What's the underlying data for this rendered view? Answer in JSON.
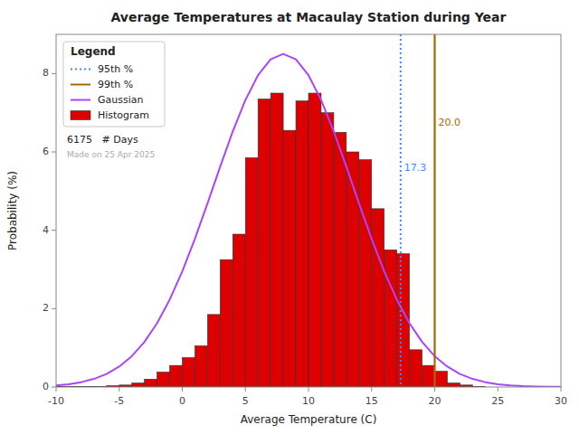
{
  "chart_data": {
    "type": "histogram",
    "title": "Average Temperatures at Macaulay Station during Year",
    "x_label": "Average Temperature (C)",
    "y_label": "Probability (%)",
    "xlim": [
      -10,
      30
    ],
    "ylim": [
      0,
      9
    ],
    "xticks": [
      -10,
      -5,
      0,
      5,
      10,
      15,
      20,
      25,
      30
    ],
    "yticks": [
      0,
      2,
      4,
      6,
      8
    ],
    "grid": false,
    "legend": "upper left",
    "legend_title": "Legend",
    "annotations": [
      "6175   # Days",
      "Made on 25 Apr 2025"
    ],
    "series": [
      {
        "name": "95th %",
        "type": "vline",
        "color": "#4488ff",
        "line_style": "dotted",
        "x": 17.3,
        "label": "17.3"
      },
      {
        "name": "99th %",
        "type": "vline",
        "color": "#aa6600",
        "line_style": "solid",
        "x": 20.0,
        "label": "20.0"
      },
      {
        "name": "Gaussian",
        "type": "line",
        "color": "#aa44ff",
        "line_style": "solid",
        "x": [
          -10,
          -9,
          -8,
          -7,
          -6,
          -5,
          -4,
          -3,
          -2,
          -1,
          0,
          1,
          2,
          3,
          4,
          5,
          6,
          7,
          8,
          9,
          10,
          11,
          12,
          13,
          14,
          15,
          16,
          17,
          18,
          19,
          20,
          21,
          22,
          23,
          24,
          25,
          26,
          27,
          28,
          29,
          30
        ],
        "values": [
          0.0401,
          0.0716,
          0.1235,
          0.2062,
          0.333,
          0.5203,
          0.7865,
          1.1503,
          1.6277,
          2.2283,
          2.9512,
          3.7816,
          4.6881,
          5.6229,
          6.5248,
          7.3251,
          7.9562,
          8.3607,
          8.5,
          8.3607,
          7.9562,
          7.3251,
          6.5248,
          5.6229,
          4.6881,
          3.7816,
          2.9512,
          2.2283,
          1.6277,
          1.1503,
          0.7865,
          0.5203,
          0.333,
          0.2062,
          0.1235,
          0.0716,
          0.0401,
          0.0218,
          0.0114,
          0.0058,
          0.0029
        ]
      },
      {
        "name": "Histogram",
        "type": "histogram",
        "color": "#dd0000",
        "bins": [
          -10,
          -9,
          -8,
          -7,
          -6,
          -5,
          -4,
          -3,
          -2,
          -1,
          0,
          1,
          2,
          3,
          4,
          5,
          6,
          7,
          8,
          9,
          10,
          11,
          12,
          13,
          14,
          15,
          16,
          17,
          18,
          19,
          20,
          21,
          22,
          23,
          24,
          25,
          26,
          27,
          28,
          29,
          30
        ],
        "values": [
          0.016,
          0.016,
          0.016,
          0.016,
          0.032,
          0.05,
          0.1,
          0.2,
          0.38,
          0.55,
          0.75,
          1.05,
          1.85,
          3.25,
          3.9,
          5.85,
          7.35,
          7.5,
          6.55,
          7.3,
          7.5,
          7.0,
          6.5,
          6.0,
          5.8,
          4.55,
          3.5,
          3.4,
          0.95,
          0.55,
          0.4,
          0.1,
          0.05,
          0.016,
          0.0,
          0.0,
          0.0,
          0.0,
          0.0,
          0.0
        ]
      }
    ]
  }
}
